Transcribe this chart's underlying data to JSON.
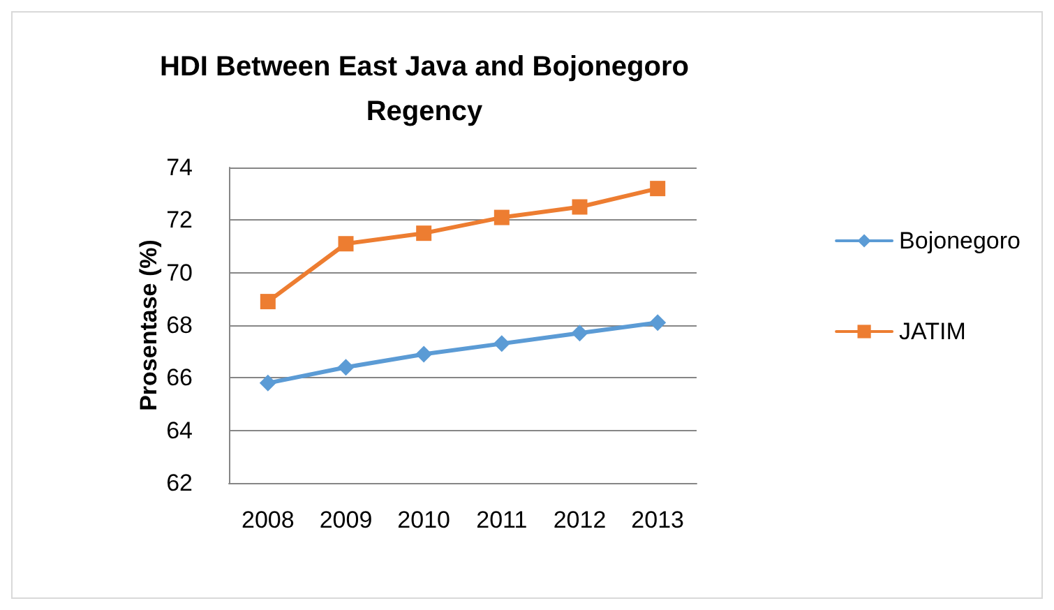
{
  "chart_data": {
    "type": "line",
    "title": "HDI Between East Java and Bojonegoro\nRegency",
    "ylabel": "Prosentase (%)",
    "categories": [
      "2008",
      "2009",
      "2010",
      "2011",
      "2012",
      "2013"
    ],
    "series": [
      {
        "name": "Bojonegoro",
        "color": "#5b9bd5",
        "marker": "diamond",
        "values": [
          65.8,
          66.4,
          66.9,
          67.3,
          67.7,
          68.1
        ]
      },
      {
        "name": "JATIM",
        "color": "#ed7d31",
        "marker": "square",
        "values": [
          68.9,
          71.1,
          71.5,
          72.1,
          72.5,
          73.2
        ]
      }
    ],
    "ylim": [
      62,
      74
    ],
    "yticks": [
      62,
      64,
      66,
      68,
      70,
      72,
      74
    ],
    "grid": "y",
    "legend": "right",
    "line_style": "solid"
  }
}
